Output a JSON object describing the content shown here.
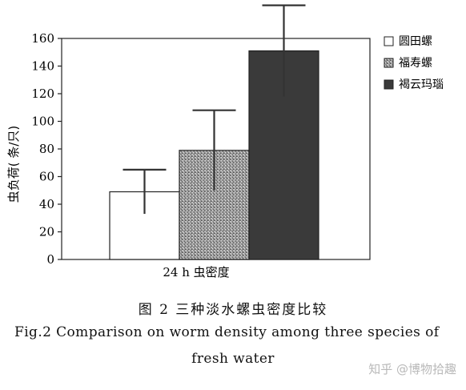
{
  "chart_data": {
    "type": "bar",
    "categories": [
      "24 h 虫密度"
    ],
    "series": [
      {
        "name": "圆田螺",
        "values": [
          49
        ],
        "error": [
          16
        ]
      },
      {
        "name": "福寿螺",
        "values": [
          79
        ],
        "error": [
          29
        ]
      },
      {
        "name": "褐云玛瑙",
        "values": [
          151
        ],
        "error": [
          33
        ]
      }
    ],
    "ylabel": "虫负荷( 条/只)",
    "xlabel": "",
    "ylim": [
      0,
      160
    ],
    "yticks": [
      0,
      20,
      40,
      60,
      80,
      100,
      120,
      140,
      160
    ],
    "legend_position": "right",
    "grid": false,
    "colors": {
      "series_0": "#ffffff",
      "series_1": "speckled-gray",
      "series_2": "#3a3a3a"
    }
  },
  "caption": {
    "cn": "图 2   三种淡水螺虫密度比较",
    "en_line1": "Fig.2   Comparison on worm density among three species of",
    "en_line2": "fresh water"
  },
  "watermark": "知乎 @博物拾趣"
}
